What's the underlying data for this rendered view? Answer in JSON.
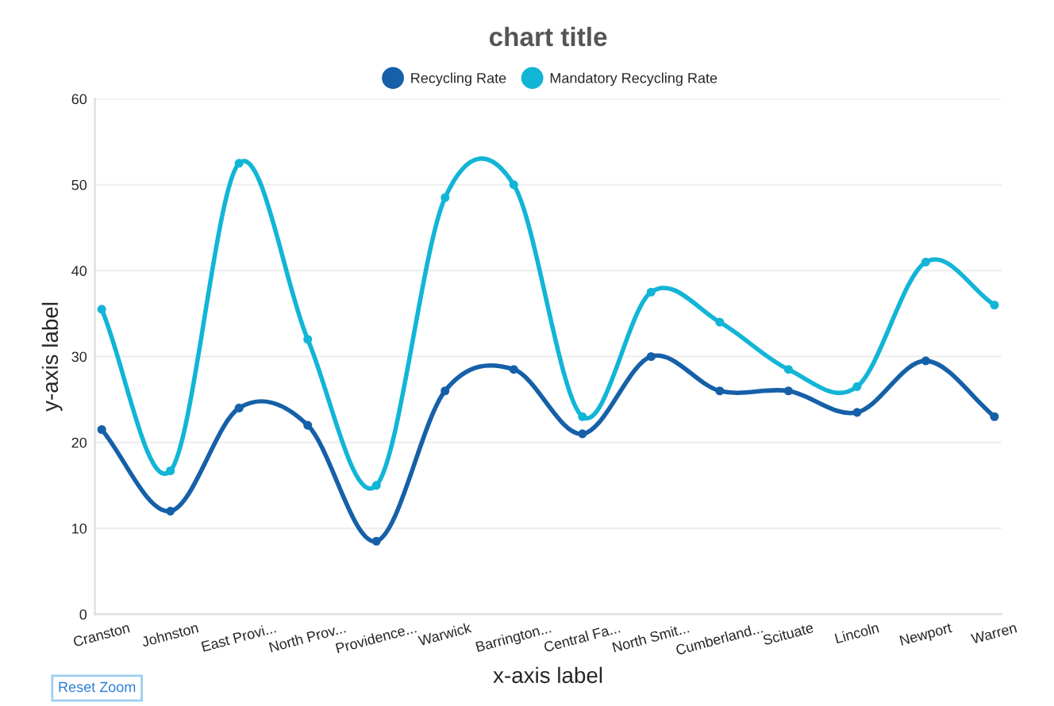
{
  "chart_data": {
    "type": "line",
    "title": "chart title",
    "xlabel": "x-axis label",
    "ylabel": "y-axis label",
    "categories": [
      "Cranston",
      "Johnston",
      "East Provi...",
      "North Prov...",
      "Providence...",
      "Warwick",
      "Barrington...",
      "Central Fa...",
      "North Smit...",
      "Cumberland...",
      "Scituate",
      "Lincoln",
      "Newport",
      "Warren"
    ],
    "series": [
      {
        "name": "Recycling Rate",
        "color": "#1560a8",
        "values": [
          21.5,
          12,
          24,
          22,
          8.5,
          26,
          28.5,
          21,
          30,
          26,
          26,
          23.5,
          29.5,
          23
        ]
      },
      {
        "name": "Mandatory Recycling Rate",
        "color": "#12b5d6",
        "values": [
          35.5,
          16.7,
          52.5,
          32,
          15,
          48.5,
          50,
          23,
          37.5,
          34,
          28.5,
          26.5,
          41,
          36
        ]
      }
    ],
    "ylim": [
      0,
      60
    ],
    "yticks": [
      0,
      10,
      20,
      30,
      40,
      50,
      60
    ],
    "grid": "y",
    "legend": "top",
    "marker": "circle",
    "line_style": "solid",
    "annotations": [
      "Reset Zoom"
    ]
  }
}
